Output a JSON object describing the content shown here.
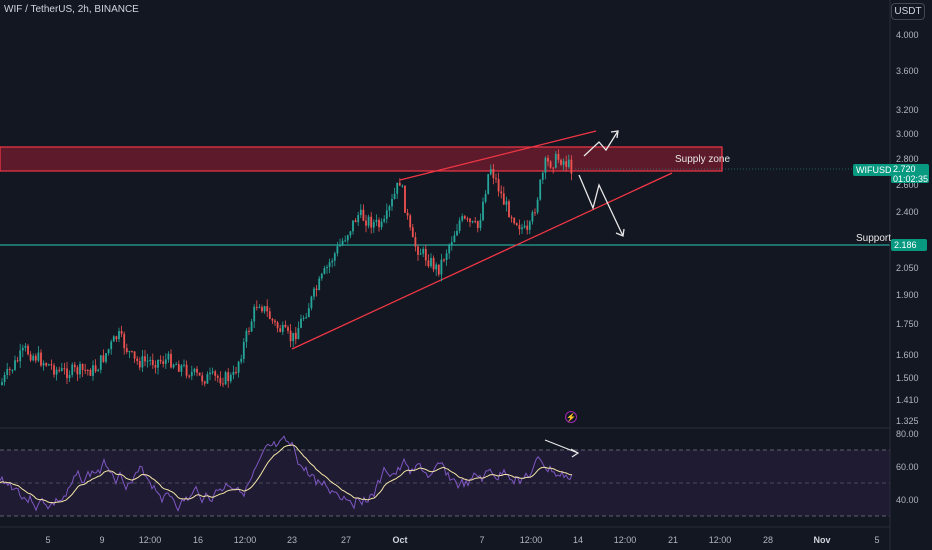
{
  "header": {
    "title": "WIF / TetherUS, 2h, BINANCE",
    "currency_button": "USDT"
  },
  "price_axis": {
    "labels": [
      "4.000",
      "3.600",
      "3.200",
      "3.000",
      "2.800",
      "2.600",
      "2.400",
      "2.186",
      "2.050",
      "1.900",
      "1.750",
      "1.600",
      "1.500",
      "1.410",
      "1.325"
    ]
  },
  "rsi_axis": {
    "labels": [
      "80.00",
      "60.00",
      "40.00"
    ]
  },
  "time_axis": {
    "labels": [
      "5",
      "9",
      "12:00",
      "16",
      "12:00",
      "23",
      "27",
      "Oct",
      "7",
      "12:00",
      "14",
      "12:00",
      "21",
      "12:00",
      "28",
      "Nov",
      "5"
    ]
  },
  "symbol_tag": {
    "label": "WIFUSDT",
    "price": "2.720",
    "countdown": "01:02:35"
  },
  "support_tag": {
    "price": "2.186"
  },
  "annotations": {
    "supply_zone": "Supply zone",
    "support": "Support"
  },
  "colors": {
    "background": "#131722",
    "up": "#26a69a",
    "down": "#ef5350",
    "zone_fill": "#5c1a2a",
    "zone_border": "#f23645",
    "support_line": "#26a69a",
    "rsi_line": "#7e57c2",
    "rsi_ma": "#f5e6a8"
  },
  "icons": {
    "alert": "lightning-icon"
  }
}
